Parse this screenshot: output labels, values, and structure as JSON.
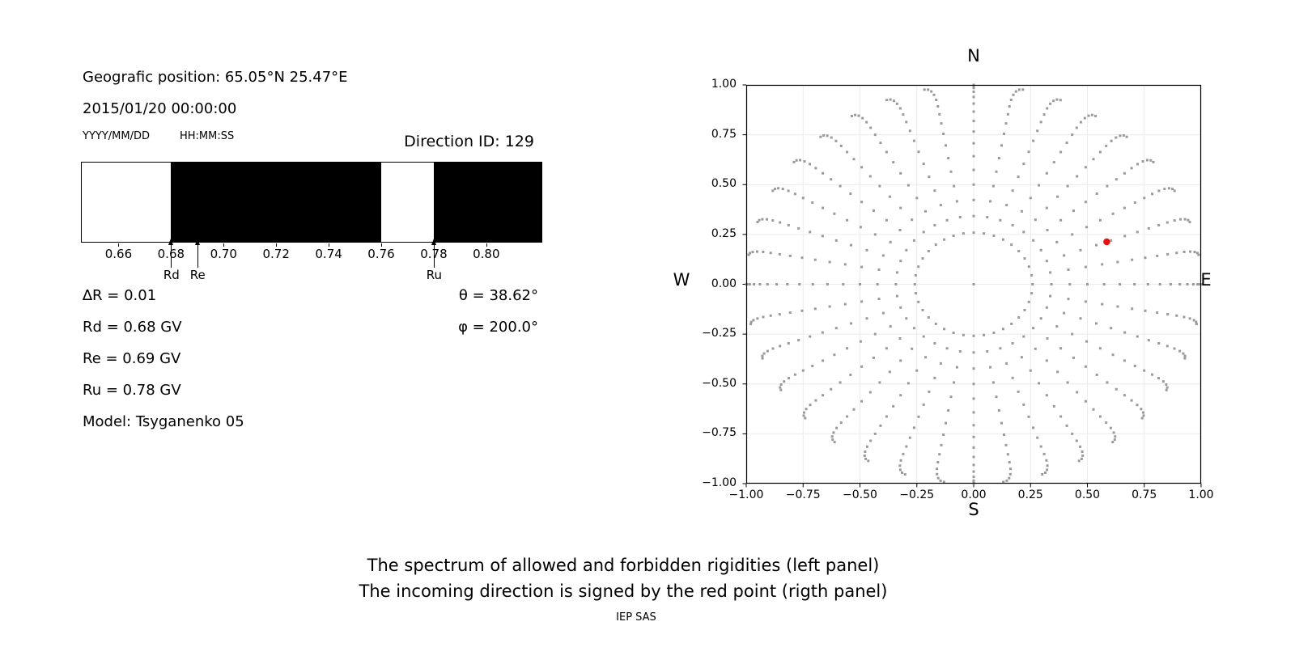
{
  "header": {
    "position_line": "Geografic position: 65.05°N 25.47°E",
    "datetime_line": "2015/01/20 00:00:00",
    "date_format_label": "YYYY/MM/DD",
    "time_format_label": "HH:MM:SS",
    "direction_id_label": "Direction ID: 129"
  },
  "info": {
    "delta_r": "∆R = 0.01",
    "rd": "Rd = 0.68 GV",
    "re": "Re = 0.69 GV",
    "ru": "Ru = 0.78 GV",
    "model": "Model: Tsyganenko 05",
    "theta": "θ = 38.62°",
    "phi": "φ = 200.0°"
  },
  "caption": {
    "line1": "The spectrum of allowed and forbidden rigidities (left panel)",
    "line2": "The incoming direction is signed by the red point (rigth panel)",
    "credit": "IEP SAS"
  },
  "colors": {
    "forbidden_band": "#000000",
    "allowed_band": "#ffffff",
    "grid": "#ececec",
    "dots": "#9a9a9a",
    "red_point": "#e81010",
    "axis": "#000000"
  },
  "chart_data": [
    {
      "type": "bar",
      "panel": "left",
      "description": "Spectrum of allowed (white) and forbidden (black) rigidities in GV",
      "xlim": [
        0.646,
        0.821
      ],
      "xticks": [
        0.66,
        0.68,
        0.7,
        0.72,
        0.74,
        0.76,
        0.78,
        0.8
      ],
      "segments": [
        {
          "from": 0.646,
          "to": 0.68,
          "color": "white"
        },
        {
          "from": 0.68,
          "to": 0.76,
          "color": "black"
        },
        {
          "from": 0.76,
          "to": 0.78,
          "color": "white"
        },
        {
          "from": 0.78,
          "to": 0.821,
          "color": "black"
        }
      ],
      "markers": [
        {
          "label": "Rd",
          "value": 0.68
        },
        {
          "label": "Re",
          "value": 0.69
        },
        {
          "label": "Ru",
          "value": 0.78
        }
      ],
      "delta_r": 0.01,
      "rd_gv": 0.68,
      "re_gv": 0.69,
      "ru_gv": 0.78
    },
    {
      "type": "scatter",
      "panel": "right",
      "description": "Incoming direction map; gray dot grid of directions, red point = incoming direction",
      "label_n": "N",
      "label_s": "S",
      "label_w": "W",
      "label_e": "E",
      "xlim": [
        -1,
        1
      ],
      "ylim": [
        -1,
        1
      ],
      "ticks": [
        -1,
        -0.75,
        -0.5,
        -0.25,
        0,
        0.25,
        0.5,
        0.75,
        1
      ],
      "grid_on": true,
      "dot_grid": {
        "azimuth_start_deg": 0,
        "azimuth_step_deg": 10,
        "azimuth_count": 36,
        "zenith_start_deg": 15,
        "zenith_step_deg": 5,
        "zenith_end_deg": 90,
        "radius_rule": "r = sin(zenith)",
        "center_dot": true,
        "tip_deflection_deg": 2.5
      },
      "red_point": {
        "x": 0.585,
        "y": 0.213,
        "theta_deg": 38.62,
        "phi_deg": 200.0
      }
    }
  ]
}
